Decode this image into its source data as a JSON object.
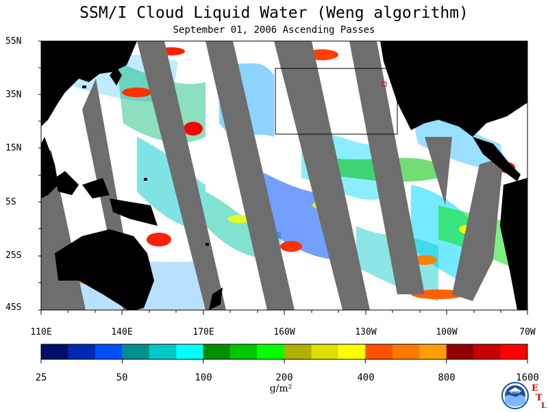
{
  "title": "SSM/I Cloud Liquid Water (Weng algorithm)",
  "subtitle": "September 01, 2006  Ascending Passes",
  "lat_ticks": [
    "55N",
    "35N",
    "15N",
    "5S",
    "25S",
    "45S"
  ],
  "lon_ticks": [
    "110E",
    "140E",
    "170E",
    "160W",
    "130W",
    "100W",
    "70W"
  ],
  "colorbar": {
    "unit": "g/m²",
    "labels": [
      "25",
      "50",
      "100",
      "200",
      "400",
      "800",
      "1600"
    ],
    "colors": [
      "#00106a",
      "#0028b0",
      "#0050ff",
      "#009090",
      "#00c8c8",
      "#00ffff",
      "#009000",
      "#00c800",
      "#00ff00",
      "#b0b000",
      "#e0e000",
      "#ffff00",
      "#ff5000",
      "#ff7800",
      "#ffa000",
      "#900000",
      "#c80000",
      "#ff0000"
    ]
  },
  "colors": {
    "land": "#000000",
    "no_data": "#6e6e6e",
    "clear": "#ffffff"
  },
  "logo": {
    "agency": "NOAA",
    "etl": [
      "E",
      "T",
      "L"
    ]
  }
}
